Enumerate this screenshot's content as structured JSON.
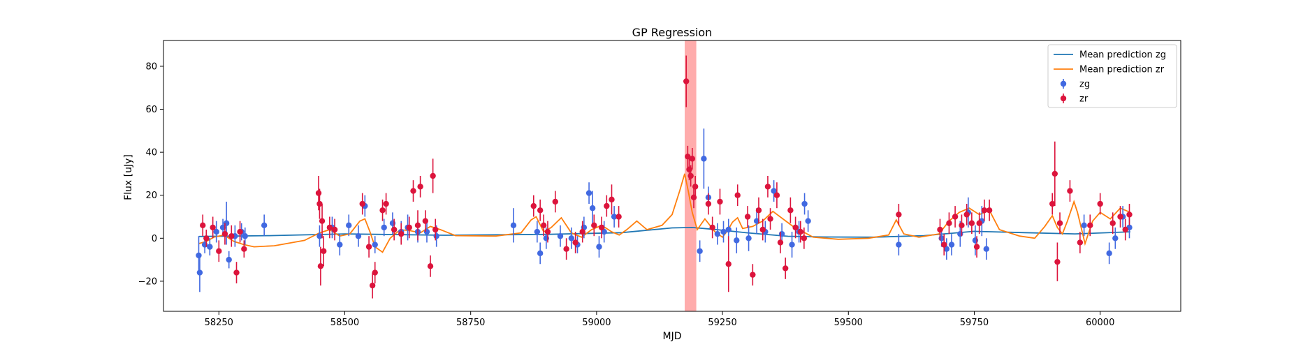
{
  "chart_data": {
    "type": "scatter",
    "title": "GP Regression",
    "xlabel": "MJD",
    "ylabel": "Flux [uJy]",
    "xlim": [
      58140,
      60160
    ],
    "ylim": [
      -34,
      92
    ],
    "xticks": [
      58250,
      58500,
      58750,
      59000,
      59250,
      59500,
      59750,
      60000
    ],
    "yticks": [
      -20,
      0,
      20,
      40,
      60,
      80
    ],
    "grid": false,
    "legend_position": "top-right",
    "shaded_region": {
      "x_start": 59175,
      "x_end": 59198,
      "color": "#ff7f7f"
    },
    "series": [
      {
        "name": "Mean prediction zg",
        "kind": "line",
        "color": "#1f77b4",
        "x": [
          58210,
          58350,
          58500,
          58700,
          58900,
          59050,
          59150,
          59190,
          59230,
          59300,
          59380,
          59450,
          59550,
          59650,
          59750,
          59850,
          59950,
          60060
        ],
        "y": [
          0.8,
          1.2,
          2.0,
          1.4,
          1.8,
          2.6,
          4.8,
          5.0,
          4.2,
          2.5,
          0.9,
          0.6,
          0.5,
          1.2,
          3.2,
          2.6,
          2.0,
          3.0
        ]
      },
      {
        "name": "Mean prediction zr",
        "kind": "line",
        "color": "#ff7f0e",
        "x": [
          58210,
          58225,
          58240,
          58260,
          58280,
          58300,
          58320,
          58360,
          58420,
          58450,
          58470,
          58490,
          58510,
          58530,
          58540,
          58550,
          58560,
          58575,
          58590,
          58610,
          58630,
          58650,
          58670,
          58690,
          58720,
          58800,
          58850,
          58870,
          58880,
          58895,
          58910,
          58930,
          58950,
          58970,
          58990,
          59010,
          59030,
          59045,
          59060,
          59080,
          59100,
          59130,
          59150,
          59165,
          59175,
          59182,
          59190,
          59200,
          59215,
          59235,
          59250,
          59260,
          59270,
          59280,
          59290,
          59310,
          59330,
          59350,
          59370,
          59390,
          59410,
          59430,
          59480,
          59540,
          59580,
          59595,
          59610,
          59640,
          59680,
          59700,
          59720,
          59740,
          59760,
          59780,
          59800,
          59840,
          59870,
          59890,
          59905,
          59915,
          59925,
          59935,
          59948,
          59955,
          59970,
          59985,
          60000,
          60020,
          60040,
          60060
        ],
        "y": [
          -2.5,
          -1.5,
          0.5,
          1.5,
          -1.5,
          -3.0,
          -4.0,
          -3.5,
          -1.0,
          2.5,
          4.0,
          1.0,
          2.0,
          8.0,
          9.0,
          3.0,
          -4.0,
          -6.5,
          0.0,
          4.0,
          3.5,
          2.5,
          5.5,
          4.0,
          1.2,
          1.0,
          2.5,
          8.5,
          10.0,
          3.0,
          5.0,
          9.5,
          2.5,
          0.5,
          4.0,
          6.0,
          3.0,
          1.5,
          4.0,
          8.0,
          4.0,
          6.0,
          11.0,
          22.0,
          30.0,
          22.0,
          12.0,
          4.0,
          9.0,
          3.0,
          0.5,
          3.5,
          7.5,
          9.5,
          4.5,
          5.5,
          8.0,
          12.5,
          9.0,
          5.5,
          3.0,
          0.5,
          -0.5,
          0.0,
          1.5,
          8.5,
          2.0,
          0.5,
          2.0,
          8.0,
          12.0,
          14.0,
          11.0,
          13.0,
          4.0,
          1.0,
          0.0,
          5.5,
          10.5,
          5.0,
          2.0,
          8.0,
          17.0,
          12.0,
          -2.5,
          8.0,
          12.0,
          9.0,
          14.0,
          12.0
        ]
      },
      {
        "name": "zg",
        "kind": "errorbar",
        "color": "#4169e1",
        "x": [
          58210,
          58212,
          58222,
          58232,
          58245,
          58258,
          58265,
          58270,
          58282,
          58295,
          58302,
          58340,
          58450,
          58475,
          58490,
          58508,
          58527,
          58540,
          58560,
          58578,
          58595,
          58612,
          58625,
          58645,
          58663,
          58682,
          58835,
          58882,
          58888,
          58900,
          58928,
          58950,
          58962,
          58975,
          58985,
          58992,
          59005,
          59015,
          59035,
          59205,
          59213,
          59222,
          59240,
          59252,
          59262,
          59278,
          59302,
          59318,
          59335,
          59352,
          59368,
          59388,
          59402,
          59413,
          59420,
          59600,
          59685,
          59695,
          59705,
          59722,
          59738,
          59752,
          59765,
          59774,
          59968,
          60018,
          60030,
          60045,
          60058
        ],
        "y": [
          -8,
          -16,
          -3,
          -4,
          3,
          5,
          7,
          -10,
          1,
          3,
          1,
          6,
          1,
          5,
          -3,
          6,
          1,
          15,
          -3,
          5,
          7,
          3,
          5,
          3,
          3,
          1,
          6,
          3,
          -7,
          0,
          1,
          0,
          -3,
          5,
          21,
          14,
          -4,
          3,
          10,
          -6,
          37,
          19,
          2,
          3,
          4,
          -1,
          0,
          8,
          3,
          22,
          2,
          -3,
          3,
          16,
          8,
          -3,
          0,
          -5,
          -3,
          2,
          12,
          -1,
          8,
          -5,
          6,
          -7,
          0,
          10,
          5
        ],
        "err": [
          9,
          9,
          4,
          4,
          5,
          4,
          10,
          4,
          5,
          4,
          4,
          5,
          5,
          5,
          5,
          5,
          5,
          5,
          4,
          4,
          5,
          5,
          6,
          5,
          5,
          5,
          8,
          5,
          5,
          5,
          5,
          5,
          4,
          5,
          5,
          8,
          5,
          5,
          5,
          5,
          14,
          5,
          5,
          5,
          5,
          6,
          6,
          6,
          5,
          5,
          5,
          6,
          5,
          5,
          5,
          5,
          4,
          5,
          5,
          6,
          7,
          7,
          7,
          5,
          5,
          5,
          5,
          5,
          5
        ]
      },
      {
        "name": "zr",
        "kind": "errorbar",
        "color": "#dc143c",
        "x": [
          58218,
          58225,
          58238,
          58250,
          58262,
          58275,
          58285,
          58292,
          58300,
          58448,
          58450,
          58452,
          58455,
          58458,
          58470,
          58480,
          58535,
          58548,
          58555,
          58560,
          58575,
          58582,
          58598,
          58612,
          58628,
          58636,
          58645,
          58650,
          58660,
          58670,
          58675,
          58680,
          58875,
          58888,
          58895,
          58903,
          58918,
          58940,
          58958,
          58972,
          58995,
          59010,
          59020,
          59030,
          59044,
          59178,
          59181,
          59184,
          59187,
          59190,
          59193,
          59196,
          59222,
          59230,
          59245,
          59262,
          59280,
          59300,
          59310,
          59322,
          59330,
          59340,
          59345,
          59358,
          59365,
          59375,
          59385,
          59395,
          59405,
          59412,
          59600,
          59682,
          59690,
          59700,
          59712,
          59725,
          59735,
          59745,
          59755,
          59760,
          59770,
          59780,
          59905,
          59910,
          59915,
          59920,
          59940,
          59960,
          59980,
          60000,
          60025,
          60040,
          60050,
          60058
        ],
        "y": [
          6,
          0,
          5,
          -6,
          2,
          1,
          -16,
          3,
          -5,
          21,
          16,
          -13,
          8,
          -6,
          5,
          4,
          16,
          -4,
          -22,
          -16,
          13,
          16,
          4,
          2,
          5,
          22,
          6,
          24,
          8,
          -13,
          29,
          4,
          15,
          13,
          6,
          3,
          17,
          -5,
          -2,
          3,
          6,
          5,
          15,
          18,
          10,
          73,
          38,
          32,
          29,
          37,
          19,
          24,
          16,
          5,
          17,
          -12,
          20,
          10,
          -17,
          13,
          4,
          24,
          9,
          20,
          -2,
          -14,
          13,
          5,
          3,
          0,
          11,
          4,
          -3,
          7,
          10,
          6,
          11,
          7,
          -4,
          7,
          13,
          13,
          16,
          30,
          -11,
          7,
          22,
          -2,
          6,
          16,
          7,
          10,
          4,
          11
        ],
        "err": [
          5,
          4,
          5,
          5,
          5,
          5,
          5,
          5,
          4,
          8,
          7,
          9,
          8,
          7,
          5,
          5,
          5,
          5,
          6,
          5,
          5,
          5,
          5,
          5,
          5,
          5,
          7,
          5,
          5,
          5,
          8,
          5,
          5,
          5,
          5,
          5,
          5,
          5,
          5,
          5,
          5,
          5,
          5,
          7,
          5,
          12,
          5,
          5,
          5,
          5,
          5,
          5,
          5,
          5,
          6,
          13,
          5,
          5,
          5,
          6,
          5,
          5,
          5,
          6,
          5,
          5,
          6,
          5,
          5,
          5,
          5,
          5,
          5,
          5,
          5,
          5,
          5,
          5,
          5,
          5,
          5,
          5,
          5,
          15,
          9,
          5,
          5,
          5,
          5,
          5,
          5,
          5,
          5,
          5
        ]
      }
    ]
  }
}
